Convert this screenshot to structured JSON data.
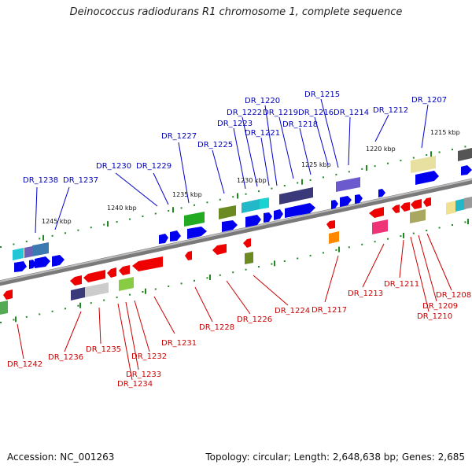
{
  "title": "Deinococcus radiodurans R1 chromosome 1, complete sequence",
  "footer": {
    "accession": "Accession: NC_001263",
    "topology": "Topology: circular; Length: 2,648,638 bp; Genes: 2,685"
  },
  "colors": {
    "forward": "#0000ee",
    "reverse": "#ee0000",
    "forward_label": "#0000bb",
    "reverse_label": "#cc0000",
    "tick": "#228822"
  },
  "scale": {
    "ticks": [
      "1245 kbp",
      "1240 kbp",
      "1235 kbp",
      "1230 kbp",
      "1225 kbp",
      "1220 kbp",
      "1215 kbp"
    ]
  },
  "genes": {
    "forward": [
      "DR_1238",
      "DR_1237",
      "DR_1230",
      "DR_1229",
      "DR_1227",
      "DR_1225",
      "DR_1223",
      "DR_1222",
      "DR_1221",
      "DR_1220",
      "DR_1219",
      "DR_1218",
      "DR_1216",
      "DR_1215",
      "DR_1214",
      "DR_1212",
      "DR_1207"
    ],
    "reverse": [
      "DR_1242",
      "DR_1236",
      "DR_1235",
      "DR_1234",
      "DR_1233",
      "DR_1232",
      "DR_1231",
      "DR_1228",
      "DR_1226",
      "DR_1224",
      "DR_1217",
      "DR_1213",
      "DR_1211",
      "DR_1210",
      "DR_1209",
      "DR_1208"
    ]
  }
}
